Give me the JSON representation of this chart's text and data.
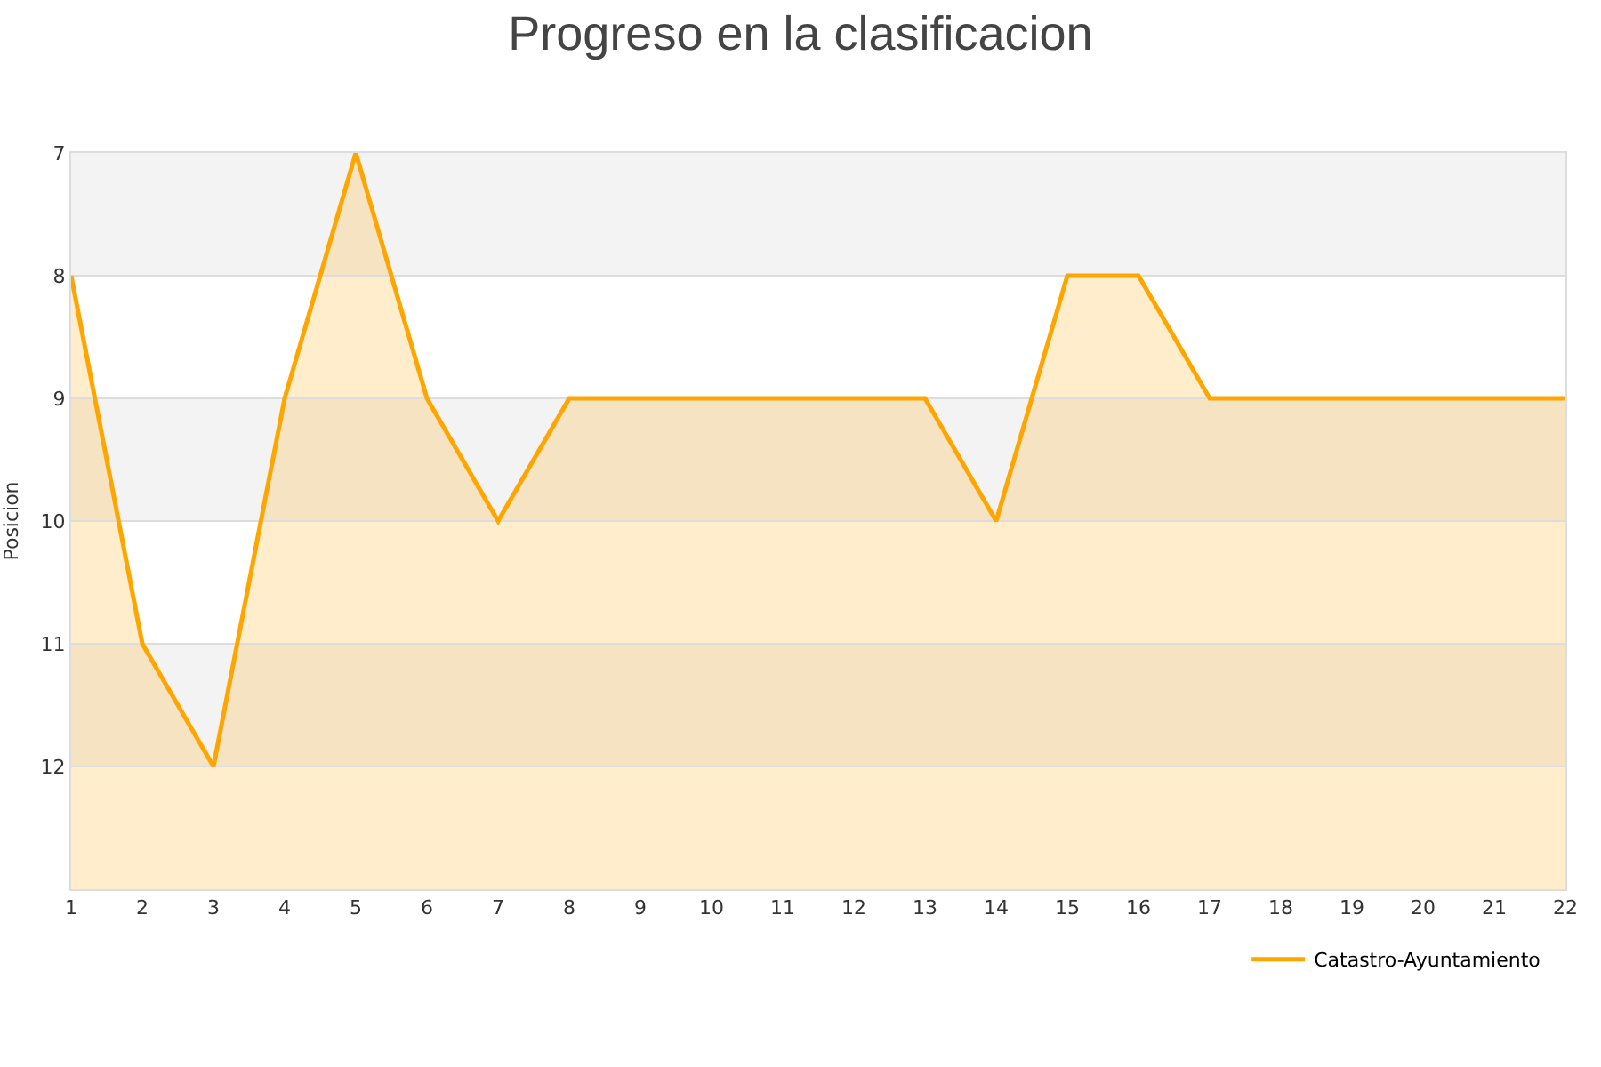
{
  "chart_data": {
    "type": "area",
    "title": "Progreso en la clasificacion",
    "ylabel": "Posicion",
    "x": [
      1,
      2,
      3,
      4,
      5,
      6,
      7,
      8,
      9,
      10,
      11,
      12,
      13,
      14,
      15,
      16,
      17,
      18,
      19,
      20,
      21,
      22
    ],
    "series": [
      {
        "name": "Catastro-Ayuntamiento",
        "color": "#ffa500",
        "values": [
          8,
          11,
          12,
          9,
          7,
          9,
          10,
          9,
          9,
          9,
          9,
          9,
          9,
          10,
          8,
          8,
          9,
          9,
          9,
          9,
          9,
          9
        ]
      }
    ],
    "xlim": [
      1,
      22
    ],
    "xticks": [
      1,
      2,
      3,
      4,
      5,
      6,
      7,
      8,
      9,
      10,
      11,
      12,
      13,
      14,
      15,
      16,
      17,
      18,
      19,
      20,
      21,
      22
    ],
    "ylim": [
      13,
      7
    ],
    "yticks": [
      7,
      8,
      9,
      10,
      11,
      12
    ],
    "bands": [
      {
        "axis": "y",
        "from": 7,
        "to": 8,
        "color": "#f3f3f3"
      },
      {
        "axis": "y",
        "from": 9,
        "to": 10,
        "color": "#f3f3f3"
      },
      {
        "axis": "y",
        "from": 11,
        "to": 12,
        "color": "#f3f3f3"
      }
    ],
    "grid": "y",
    "legend": "bottom right",
    "marker": "none",
    "line_style": "solid"
  }
}
